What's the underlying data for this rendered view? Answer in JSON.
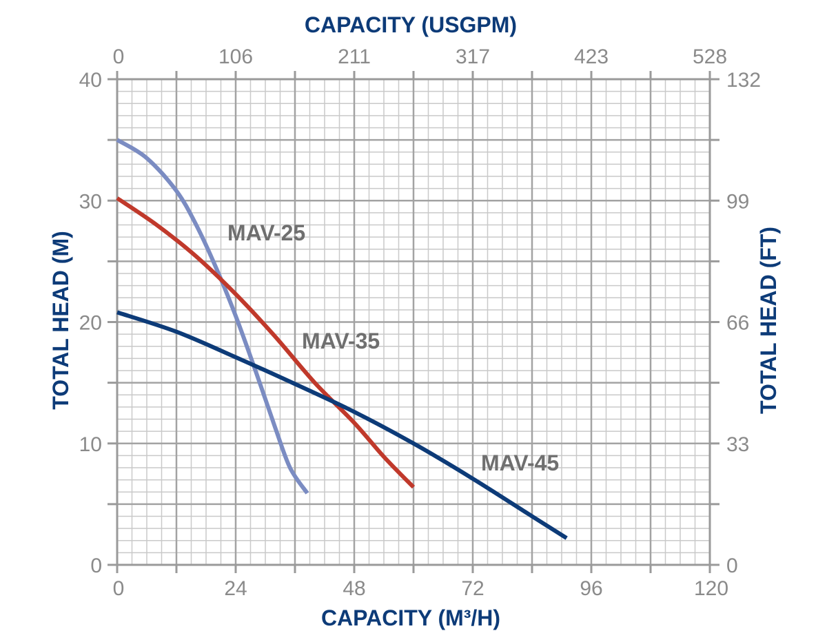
{
  "chart_data": {
    "type": "line",
    "title": "",
    "xlabel_bottom": "CAPACITY (M³/H)",
    "xlabel_top": "CAPACITY (USGPM)",
    "ylabel_left": "TOTAL HEAD (M)",
    "ylabel_right": "TOTAL HEAD (FT)",
    "xlim": [
      0,
      120
    ],
    "ylim": [
      0,
      40
    ],
    "x_ticks": [
      "0",
      "24",
      "48",
      "72",
      "96",
      "120"
    ],
    "x_ticks_top": [
      "0",
      "106",
      "211",
      "317",
      "423",
      "528"
    ],
    "y_ticks_left": [
      "0",
      "10",
      "20",
      "30",
      "40"
    ],
    "y_ticks_right": [
      "0",
      "33",
      "66",
      "99",
      "132"
    ],
    "grid": true,
    "series": [
      {
        "name": "MAV-25",
        "color": "#7b8cc2",
        "x": [
          0,
          6,
          12,
          16,
          20,
          24,
          28,
          32,
          35,
          38.5
        ],
        "y": [
          35,
          33.5,
          30.8,
          28,
          24.5,
          20.5,
          16,
          11.3,
          8,
          5.9
        ]
      },
      {
        "name": "MAV-35",
        "color": "#c0392b",
        "x": [
          0,
          8,
          16,
          24,
          32,
          40,
          48,
          54,
          60
        ],
        "y": [
          30.2,
          28,
          25.4,
          22.3,
          18.8,
          15,
          11.7,
          8.9,
          6.4
        ]
      },
      {
        "name": "MAV-45",
        "color": "#0d3b78",
        "x": [
          0,
          12,
          24,
          36,
          48,
          60,
          72,
          84,
          91
        ],
        "y": [
          20.8,
          19.2,
          17.1,
          14.9,
          12.6,
          10,
          7.1,
          4,
          2.2
        ]
      }
    ],
    "annotations": [
      "MAV-25",
      "MAV-35",
      "MAV-45"
    ],
    "axis_title_color": "#0d3b78"
  }
}
